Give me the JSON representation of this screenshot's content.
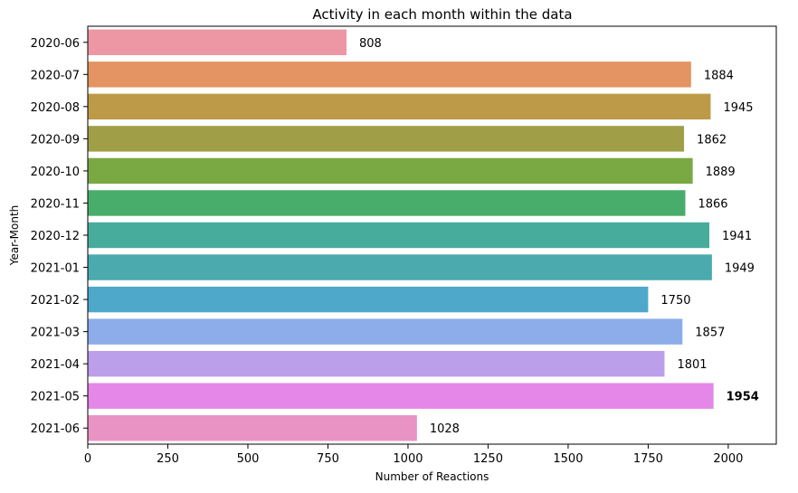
{
  "chart_data": {
    "type": "bar",
    "orientation": "horizontal",
    "title": "Activity in each month within the data",
    "xlabel": "Number of Reactions",
    "ylabel": "Year-Month",
    "xlim": [
      0,
      2150
    ],
    "xticks": [
      "0",
      "250",
      "500",
      "750",
      "1000",
      "1250",
      "1500",
      "1750",
      "2000"
    ],
    "grid": false,
    "categories": [
      "2020-06",
      "2020-07",
      "2020-08",
      "2020-09",
      "2020-10",
      "2020-11",
      "2020-12",
      "2021-01",
      "2021-02",
      "2021-03",
      "2021-04",
      "2021-05",
      "2021-06"
    ],
    "values": [
      808,
      1884,
      1945,
      1862,
      1889,
      1866,
      1941,
      1949,
      1750,
      1857,
      1801,
      1954,
      1028
    ],
    "value_labels": [
      "808",
      "1884",
      "1945",
      "1862",
      "1889",
      "1866",
      "1941",
      "1949",
      "1750",
      "1857",
      "1801",
      "1954",
      "1028"
    ],
    "highlighted_label": "1954",
    "colors": [
      "#ee97a4",
      "#e39462",
      "#bd9a47",
      "#a09f47",
      "#7aa943",
      "#48ad6a",
      "#48ac9c",
      "#4aaaae",
      "#4ea8c9",
      "#8dadea",
      "#bc9feb",
      "#e487e8",
      "#e893c4"
    ]
  }
}
